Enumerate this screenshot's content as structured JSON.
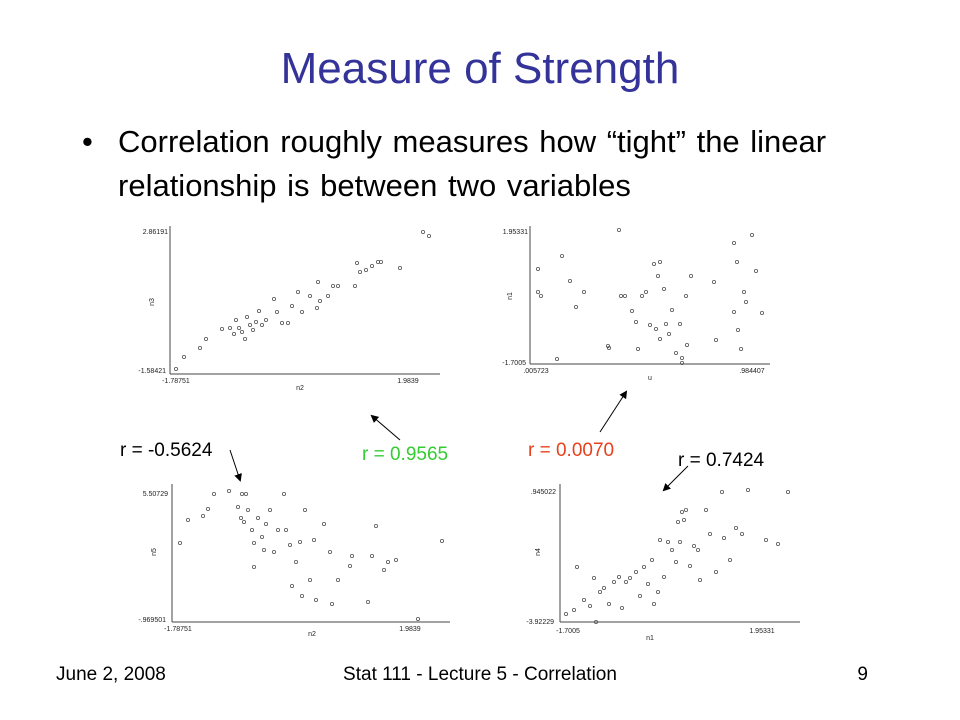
{
  "slide": {
    "title": "Measure of Strength",
    "bullet_symbol": "•",
    "bullet": "Correlation roughly measures how “tight” the linear relationship is between two variables"
  },
  "colors": {
    "title": "#333399",
    "r_black": "#000000",
    "r_green": "#33cc33",
    "r_red": "#e8401c"
  },
  "plots": [
    {
      "id": "top-left",
      "ytick_top": "2.86191",
      "ytick_bottom": "-1.58421",
      "xtick_left": "-1.78751",
      "xtick_right": "1.9839",
      "ylabel": "n3",
      "xlabel": "n2"
    },
    {
      "id": "top-right",
      "ytick_top": "1.95331",
      "ytick_bottom": "-1.7005",
      "xtick_left": ".005723",
      "xtick_right": ".984407",
      "ylabel": "n1",
      "xlabel": "u"
    },
    {
      "id": "bottom-left",
      "ytick_top": "5.50729",
      "ytick_bottom": "-.969501",
      "xtick_left": "-1.78751",
      "xtick_right": "1.9839",
      "ylabel": "n5",
      "xlabel": "n2"
    },
    {
      "id": "bottom-right",
      "ytick_top": ".945022",
      "ytick_bottom": "-3.92229",
      "xtick_left": "-1.7005",
      "xtick_right": "1.95331",
      "ylabel": "n4",
      "xlabel": "n1"
    }
  ],
  "r_labels": {
    "neg": "r = -0.5624",
    "pos_strong": "r = 0.9565",
    "zero": "r = 0.0070",
    "pos_mod": "r = 0.7424"
  },
  "footer": {
    "date": "June 2, 2008",
    "center": "Stat 111 - Lecture 5 - Correlation",
    "page": "9"
  }
}
